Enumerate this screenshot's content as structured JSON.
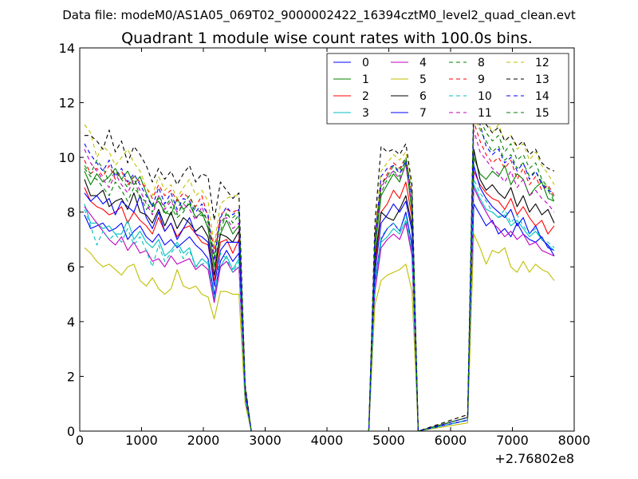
{
  "figure": {
    "suptitle": "Data file: modeM0/AS1A05_069T02_9000002422_16394cztM0_level2_quad_clean.evt"
  },
  "chart_data": {
    "type": "line",
    "title": "Quadrant 1 module wise count rates with 100.0s bins.",
    "xlabel": "",
    "ylabel": "",
    "x_offset_label": "+2.76802e8",
    "xlim": [
      0,
      8000
    ],
    "ylim": [
      0,
      14
    ],
    "x_ticks": [
      0,
      1000,
      2000,
      3000,
      4000,
      5000,
      6000,
      7000,
      8000
    ],
    "y_ticks": [
      0,
      2,
      4,
      6,
      8,
      10,
      12,
      14
    ],
    "legend_position": "top-right",
    "legend_columns": 4,
    "x": [
      76,
      176,
      276,
      376,
      476,
      576,
      676,
      776,
      876,
      976,
      1076,
      1176,
      1276,
      1376,
      1476,
      1576,
      1676,
      1776,
      1876,
      1976,
      2076,
      2176,
      2276,
      2376,
      2476,
      2576,
      2676,
      2776,
      4676,
      4776,
      4876,
      4976,
      5076,
      5176,
      5276,
      5376,
      5476,
      6276,
      6376,
      6476,
      6576,
      6676,
      6776,
      6876,
      6976,
      7076,
      7176,
      7276,
      7376,
      7476,
      7576,
      7676
    ],
    "series": [
      {
        "name": "0",
        "color": "#0000ff",
        "style": "solid",
        "values": [
          7.9,
          7.4,
          7.5,
          7.6,
          7.3,
          7.4,
          7.6,
          7.0,
          7.3,
          7.5,
          7.1,
          6.9,
          7.2,
          6.8,
          7.0,
          6.7,
          6.9,
          7.1,
          6.8,
          6.6,
          6.3,
          5.0,
          6.2,
          6.6,
          6.2,
          6.5,
          1.2,
          0,
          0,
          5.5,
          7.0,
          7.4,
          7.6,
          7.3,
          8.0,
          6.8,
          0,
          0.4,
          8.3,
          7.9,
          7.5,
          7.7,
          7.2,
          7.4,
          7.1,
          7.6,
          7.2,
          7.0,
          6.9,
          7.1,
          6.7,
          6.6
        ]
      },
      {
        "name": "1",
        "color": "#008000",
        "style": "solid",
        "values": [
          9.5,
          9.0,
          9.4,
          9.1,
          9.3,
          9.6,
          9.2,
          9.5,
          9.0,
          9.3,
          8.7,
          8.2,
          8.4,
          8.0,
          7.9,
          8.5,
          8.1,
          8.3,
          7.8,
          8.0,
          7.4,
          6.0,
          7.2,
          7.7,
          7.2,
          7.5,
          1.5,
          0,
          0,
          6.6,
          8.6,
          9.0,
          9.4,
          9.1,
          9.8,
          8.0,
          0,
          0.5,
          10.0,
          9.4,
          9.2,
          9.5,
          9.3,
          9.7,
          9.0,
          9.4,
          9.2,
          8.6,
          8.9,
          9.1,
          8.5,
          8.4
        ]
      },
      {
        "name": "2",
        "color": "#ff0000",
        "style": "solid",
        "values": [
          8.9,
          8.4,
          8.2,
          8.1,
          7.9,
          8.0,
          8.2,
          7.6,
          8.0,
          7.7,
          7.5,
          7.2,
          7.8,
          7.3,
          7.6,
          7.1,
          7.4,
          7.5,
          7.2,
          6.9,
          6.8,
          5.5,
          6.9,
          7.0,
          6.5,
          7.0,
          1.3,
          0,
          0,
          6.0,
          8.0,
          8.3,
          8.8,
          8.5,
          9.1,
          7.8,
          0,
          0.5,
          9.5,
          9.0,
          8.7,
          8.5,
          8.4,
          8.1,
          8.5,
          7.9,
          8.2,
          7.8,
          7.5,
          7.7,
          7.2,
          7.5
        ]
      },
      {
        "name": "3",
        "color": "#00bfbf",
        "style": "solid",
        "values": [
          8.3,
          7.6,
          7.6,
          7.4,
          7.5,
          7.2,
          7.2,
          7.7,
          7.0,
          7.3,
          6.9,
          6.7,
          7.0,
          6.4,
          6.6,
          6.9,
          6.5,
          6.7,
          6.0,
          6.3,
          6.1,
          4.8,
          6.0,
          6.4,
          5.9,
          6.3,
          1.2,
          0,
          0,
          5.3,
          6.9,
          7.1,
          7.4,
          7.2,
          7.7,
          6.5,
          0,
          0.4,
          9.0,
          8.5,
          8.1,
          8.0,
          7.8,
          7.9,
          7.5,
          7.7,
          7.4,
          7.1,
          7.3,
          7.0,
          6.8,
          6.6
        ]
      },
      {
        "name": "4",
        "color": "#bf00bf",
        "style": "solid",
        "values": [
          8.2,
          7.9,
          7.6,
          7.3,
          7.0,
          6.8,
          7.1,
          6.6,
          6.9,
          6.5,
          6.6,
          6.2,
          6.3,
          6.0,
          6.4,
          6.1,
          6.2,
          6.3,
          5.9,
          6.1,
          5.9,
          4.7,
          6.0,
          6.2,
          5.8,
          6.0,
          1.2,
          0,
          0,
          5.1,
          6.7,
          7.0,
          7.2,
          7.0,
          7.6,
          6.4,
          0,
          0.4,
          8.9,
          8.4,
          8.0,
          7.6,
          7.4,
          7.1,
          7.3,
          7.0,
          7.2,
          6.8,
          6.9,
          6.6,
          6.5,
          6.4
        ]
      },
      {
        "name": "5",
        "color": "#bfbf00",
        "style": "solid",
        "values": [
          6.7,
          6.5,
          6.2,
          6.0,
          6.1,
          5.9,
          5.7,
          6.0,
          6.1,
          5.5,
          5.3,
          5.6,
          5.2,
          5.0,
          5.2,
          5.9,
          5.3,
          5.2,
          5.3,
          5.0,
          4.9,
          4.1,
          5.1,
          5.1,
          5.0,
          5.0,
          1.0,
          0,
          0,
          4.6,
          5.5,
          5.7,
          5.8,
          5.9,
          6.1,
          5.1,
          0,
          0.3,
          7.2,
          6.7,
          6.1,
          6.6,
          6.5,
          6.7,
          6.0,
          5.8,
          6.2,
          5.8,
          6.1,
          5.9,
          5.8,
          5.5
        ]
      },
      {
        "name": "6",
        "color": "#000000",
        "style": "solid",
        "values": [
          9.2,
          8.6,
          8.6,
          8.8,
          8.2,
          8.4,
          8.5,
          8.1,
          8.7,
          8.0,
          7.9,
          7.6,
          8.1,
          7.5,
          8.0,
          7.4,
          7.8,
          7.6,
          7.3,
          7.5,
          7.1,
          5.7,
          7.2,
          7.1,
          6.9,
          7.3,
          1.4,
          0,
          0,
          6.3,
          8.0,
          7.8,
          7.7,
          8.1,
          8.6,
          7.5,
          0,
          0.5,
          10.3,
          9.2,
          8.8,
          9.0,
          8.7,
          8.5,
          8.9,
          8.2,
          8.6,
          8.0,
          8.3,
          7.9,
          8.1,
          7.6
        ]
      },
      {
        "name": "7",
        "color": "#0000ff",
        "style": "solid",
        "values": [
          8.7,
          8.4,
          8.6,
          8.3,
          8.5,
          7.9,
          8.4,
          8.2,
          8.0,
          8.6,
          7.8,
          7.4,
          8.0,
          7.3,
          7.6,
          7.0,
          7.4,
          7.8,
          7.2,
          7.1,
          6.9,
          5.3,
          6.6,
          6.9,
          6.9,
          6.9,
          1.3,
          0,
          0,
          5.8,
          7.6,
          7.9,
          8.3,
          8.0,
          8.4,
          7.3,
          0,
          0.4,
          9.7,
          8.9,
          8.5,
          8.2,
          8.0,
          7.8,
          8.1,
          7.5,
          7.8,
          7.2,
          7.5,
          7.0,
          6.8,
          6.4
        ]
      },
      {
        "name": "8",
        "color": "#008000",
        "style": "dashed",
        "values": [
          9.6,
          9.3,
          9.2,
          8.9,
          8.6,
          9.1,
          8.8,
          8.4,
          8.9,
          8.6,
          8.1,
          8.3,
          8.5,
          7.9,
          8.2,
          7.8,
          8.0,
          8.4,
          7.8,
          7.9,
          7.5,
          6.0,
          7.3,
          8.0,
          7.6,
          7.9,
          1.5,
          0,
          0,
          6.8,
          8.7,
          9.2,
          9.5,
          9.3,
          9.9,
          8.1,
          0,
          0.5,
          11.6,
          11.0,
          10.6,
          10.2,
          10.4,
          9.9,
          10.1,
          9.6,
          9.8,
          9.3,
          9.5,
          9.1,
          8.8,
          8.4
        ]
      },
      {
        "name": "9",
        "color": "#ff0000",
        "style": "dashed",
        "values": [
          9.9,
          9.4,
          9.6,
          9.3,
          9.7,
          9.2,
          9.5,
          9.0,
          9.3,
          9.1,
          8.9,
          8.5,
          9.0,
          8.6,
          8.8,
          8.4,
          8.7,
          8.5,
          8.2,
          8.6,
          7.8,
          6.6,
          7.9,
          8.1,
          8.0,
          8.1,
          1.6,
          0,
          0,
          7.2,
          9.0,
          9.4,
          9.8,
          9.6,
          10.0,
          8.6,
          0,
          0.5,
          11.3,
          10.6,
          10.1,
          9.8,
          10.0,
          9.6,
          9.9,
          9.2,
          9.6,
          9.0,
          9.3,
          8.8,
          9.0,
          8.6
        ]
      },
      {
        "name": "10",
        "color": "#00bfbf",
        "style": "dashed",
        "values": [
          8.1,
          7.5,
          6.8,
          7.3,
          7.0,
          7.2,
          6.9,
          7.4,
          6.8,
          7.1,
          6.6,
          6.0,
          6.8,
          6.2,
          6.5,
          6.8,
          6.3,
          6.6,
          6.0,
          6.1,
          6.2,
          4.9,
          6.5,
          6.3,
          5.8,
          6.2,
          1.2,
          0,
          0,
          5.4,
          7.1,
          7.4,
          7.6,
          7.3,
          7.9,
          6.6,
          0,
          0.4,
          9.2,
          8.7,
          8.4,
          8.0,
          7.8,
          8.1,
          7.6,
          7.9,
          7.5,
          7.2,
          7.4,
          7.0,
          6.9,
          6.7
        ]
      },
      {
        "name": "11",
        "color": "#bf00bf",
        "style": "dashed",
        "values": [
          10.3,
          9.8,
          9.5,
          9.2,
          8.9,
          9.4,
          9.0,
          8.7,
          9.2,
          8.8,
          8.3,
          7.9,
          8.6,
          8.1,
          8.4,
          8.0,
          8.3,
          8.1,
          7.7,
          8.2,
          7.6,
          6.2,
          7.7,
          7.8,
          7.4,
          7.6,
          1.5,
          0,
          0,
          6.9,
          8.9,
          9.3,
          9.5,
          9.2,
          9.7,
          8.3,
          0,
          0.5,
          11.0,
          10.2,
          9.9,
          9.6,
          9.4,
          9.1,
          9.5,
          8.9,
          9.2,
          8.6,
          8.8,
          8.5,
          8.3,
          8.0
        ]
      },
      {
        "name": "12",
        "color": "#bfbf00",
        "style": "dashed",
        "values": [
          11.2,
          10.9,
          10.0,
          10.4,
          10.2,
          9.7,
          10.0,
          10.3,
          9.8,
          9.5,
          8.9,
          8.6,
          9.3,
          8.8,
          9.0,
          8.5,
          8.9,
          9.2,
          8.6,
          8.8,
          8.4,
          6.8,
          8.3,
          8.5,
          8.6,
          8.6,
          1.7,
          0,
          0,
          7.5,
          9.5,
          9.8,
          10.1,
          9.9,
          10.2,
          8.9,
          0,
          0.6,
          11.6,
          11.0,
          11.4,
          10.9,
          11.2,
          10.6,
          10.8,
          10.3,
          10.5,
          9.9,
          10.2,
          9.7,
          9.4,
          9.0
        ]
      },
      {
        "name": "13",
        "color": "#000000",
        "style": "dashed",
        "values": [
          10.8,
          10.8,
          10.6,
          10.3,
          11.0,
          10.2,
          10.6,
          9.8,
          10.4,
          10.1,
          9.7,
          9.1,
          9.6,
          9.2,
          9.5,
          9.0,
          9.4,
          9.7,
          9.1,
          9.4,
          9.3,
          7.7,
          9.1,
          8.8,
          8.5,
          8.7,
          1.7,
          0,
          0,
          7.6,
          10.4,
          10.2,
          10.3,
          10.1,
          10.5,
          9.0,
          0,
          0.6,
          12.3,
          11.5,
          11.2,
          10.9,
          11.1,
          10.6,
          10.8,
          10.4,
          10.6,
          10.1,
          10.3,
          9.8,
          9.6,
          9.5
        ]
      },
      {
        "name": "14",
        "color": "#0000ff",
        "style": "dashed",
        "values": [
          10.5,
          10.1,
          9.8,
          9.5,
          9.9,
          9.3,
          9.6,
          9.1,
          9.4,
          9.0,
          8.6,
          8.2,
          8.9,
          8.3,
          8.7,
          8.1,
          8.5,
          8.4,
          8.0,
          8.3,
          7.9,
          6.3,
          7.8,
          8.2,
          7.9,
          8.1,
          1.6,
          0,
          0,
          7.0,
          9.3,
          9.6,
          9.7,
          9.4,
          9.9,
          8.5,
          0,
          0.5,
          11.8,
          11.2,
          10.4,
          10.1,
          10.3,
          9.8,
          10.0,
          9.5,
          9.8,
          9.2,
          9.5,
          9.0,
          8.8,
          8.7
        ]
      },
      {
        "name": "15",
        "color": "#008000",
        "style": "dashed",
        "values": [
          9.7,
          9.4,
          9.9,
          9.6,
          9.1,
          9.5,
          9.2,
          8.9,
          9.3,
          8.5,
          8.4,
          8.0,
          8.6,
          8.2,
          8.5,
          7.9,
          8.3,
          8.6,
          8.1,
          8.0,
          7.7,
          6.4,
          7.6,
          7.9,
          7.8,
          8.0,
          1.5,
          0,
          0,
          7.0,
          9.0,
          9.3,
          9.7,
          9.5,
          10.0,
          8.7,
          0,
          0.5,
          11.9,
          11.4,
          10.9,
          10.6,
          10.8,
          10.2,
          10.5,
          9.9,
          10.1,
          9.6,
          9.8,
          9.2,
          8.9,
          8.5
        ]
      }
    ]
  }
}
